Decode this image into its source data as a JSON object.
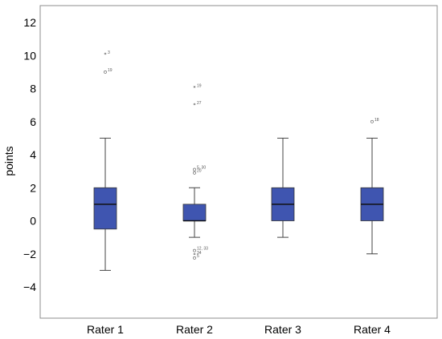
{
  "chart_data": {
    "type": "boxplot",
    "title": "",
    "xlabel": "",
    "ylabel": "points",
    "ylim": [
      -6,
      13
    ],
    "yticks": [
      -4,
      -2,
      0,
      2,
      4,
      6,
      8,
      10,
      12
    ],
    "grid": false,
    "box_color": "#3f55b0",
    "categories": [
      "Rater 1",
      "Rater 2",
      "Rater 3",
      "Rater 4"
    ],
    "boxes": [
      {
        "name": "Rater 1",
        "whisker_low": -3,
        "q1": -0.5,
        "median": 1,
        "q3": 2,
        "whisker_high": 5,
        "outliers": [
          {
            "value": 10.05,
            "label": "3",
            "marker": "star"
          },
          {
            "value": 9.0,
            "label": "19",
            "marker": "circle"
          }
        ]
      },
      {
        "name": "Rater 2",
        "whisker_low": -1,
        "q1": 0,
        "median": 0,
        "q3": 1,
        "whisker_high": 2,
        "outliers": [
          {
            "value": 8.05,
            "label": "19",
            "marker": "star"
          },
          {
            "value": 7.0,
            "label": "27",
            "marker": "star"
          },
          {
            "value": 3.1,
            "label": "5, 30",
            "marker": "circle"
          },
          {
            "value": 2.9,
            "label": "20",
            "marker": "circle"
          },
          {
            "value": -1.8,
            "label": "12, 33",
            "marker": "circle"
          },
          {
            "value": -2.05,
            "label": "34",
            "marker": "star"
          },
          {
            "value": -2.25,
            "label": "5",
            "marker": "circle"
          }
        ]
      },
      {
        "name": "Rater 3",
        "whisker_low": -1,
        "q1": 0,
        "median": 1,
        "q3": 2,
        "whisker_high": 5,
        "outliers": []
      },
      {
        "name": "Rater 4",
        "whisker_low": -2,
        "q1": 0,
        "median": 1,
        "q3": 2,
        "whisker_high": 5,
        "outliers": [
          {
            "value": 6.0,
            "label": "18",
            "marker": "circle"
          }
        ]
      }
    ]
  }
}
